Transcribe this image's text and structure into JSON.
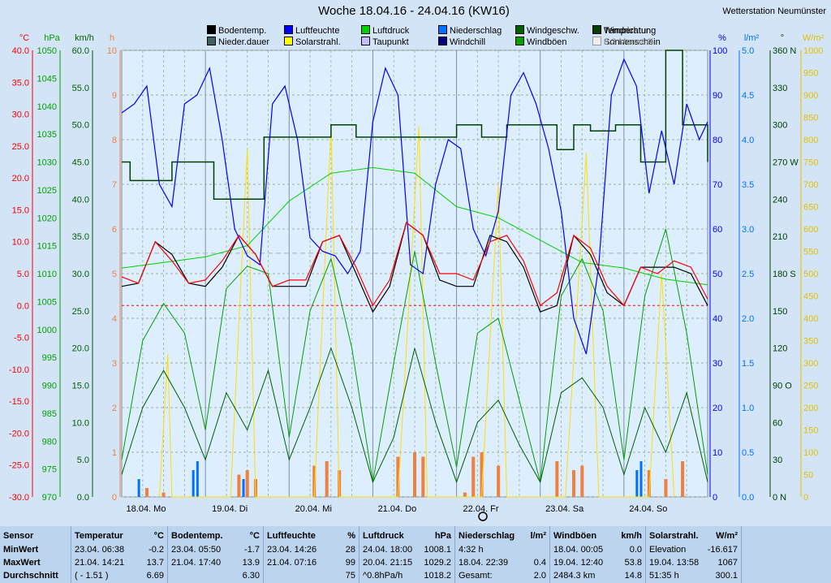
{
  "title": "Woche 18.04.16 - 24.04.16 (KW16)",
  "station": "Wetterstation Neumünster",
  "legend": [
    {
      "label": "Temperatur",
      "color": "#ff0000"
    },
    {
      "label": "Sonnenschein",
      "color": "#f08040"
    },
    {
      "label": "Bodentemp.",
      "color": "#000000"
    },
    {
      "label": "Nieder.dauer",
      "color": "#406060"
    },
    {
      "label": "Luftfeuchte",
      "color": "#0000ff"
    },
    {
      "label": "Solarstrahl.",
      "color": "#ffff00"
    },
    {
      "label": "Luftdruck",
      "color": "#00d000"
    },
    {
      "label": "Taupunkt",
      "color": "#c0c0ff"
    },
    {
      "label": "Niederschlag",
      "color": "#0070ff"
    },
    {
      "label": "Windchill",
      "color": "#000080"
    },
    {
      "label": "Windgeschw.",
      "color": "#006000"
    },
    {
      "label": "Windböen",
      "color": "#00a000"
    },
    {
      "label": "Windrichtung",
      "color": "#004000"
    },
    {
      "label": "8.2 Monat-Ø",
      "color": "#eeeeee"
    }
  ],
  "chart_data": {
    "type": "line",
    "title": "Woche 18.04.16 - 24.04.16 (KW16)",
    "x_labels": [
      "18.04. Mo",
      "19.04. Di",
      "20.04. Mi",
      "21.04. Do",
      "22.04. Fr",
      "23.04. Sa",
      "24.04. So"
    ],
    "axes": {
      "temperature_C": {
        "label": "°C",
        "ticks": [
          "40.0",
          "35.0",
          "30.0",
          "25.0",
          "20.0",
          "15.0",
          "10.0",
          "5.0",
          "0.0",
          "-5.0",
          "-10.0",
          "-15.0",
          "-20.0",
          "-25.0",
          "-30.0"
        ],
        "range": [
          -30,
          40
        ]
      },
      "pressure_hPa": {
        "label": "hPa",
        "ticks": [
          "1050",
          "1045",
          "1040",
          "1035",
          "1030",
          "1025",
          "1020",
          "1015",
          "1010",
          "1005",
          "1000",
          "995",
          "990",
          "985",
          "980",
          "975",
          "970"
        ],
        "range": [
          970,
          1050
        ]
      },
      "wind_kmh": {
        "label": "km/h",
        "ticks": [
          "60.0",
          "55.0",
          "50.0",
          "45.0",
          "40.0",
          "35.0",
          "30.0",
          "25.0",
          "20.0",
          "15.0",
          "10.0",
          "5.0",
          "0.0"
        ],
        "range": [
          0,
          60
        ]
      },
      "sunshine_h": {
        "label": "h",
        "ticks": [
          "10",
          "9",
          "8",
          "7",
          "6",
          "5",
          "4",
          "3",
          "2",
          "1",
          "0"
        ],
        "range": [
          0,
          10
        ]
      },
      "humidity_pct": {
        "label": "%",
        "ticks": [
          "100",
          "90",
          "80",
          "70",
          "60",
          "50",
          "40",
          "30",
          "20",
          "10",
          "0"
        ],
        "range": [
          0,
          100
        ]
      },
      "rain_lm2": {
        "label": "l/m²",
        "ticks": [
          "5.0",
          "4.5",
          "4.0",
          "3.5",
          "3.0",
          "2.5",
          "2.0",
          "1.5",
          "1.0",
          "0.5",
          "0.0"
        ],
        "range": [
          0,
          5
        ]
      },
      "direction_deg": {
        "label": "°",
        "ticks": [
          "360 N",
          "330",
          "300",
          "270 W",
          "240",
          "210",
          "180 S",
          "150",
          "120",
          "90 O",
          "60",
          "30",
          "0 N"
        ],
        "range": [
          0,
          360
        ]
      },
      "solar_wm2": {
        "label": "W/m²",
        "ticks": [
          "1000",
          "950",
          "900",
          "850",
          "800",
          "750",
          "700",
          "650",
          "600",
          "550",
          "500",
          "450",
          "400",
          "350",
          "300",
          "250",
          "200",
          "150",
          "100",
          "50",
          "0"
        ],
        "range": [
          0,
          1000
        ]
      }
    },
    "series": [
      {
        "name": "Temperatur",
        "unit": "°C",
        "x": [
          0,
          0.2,
          0.4,
          0.6,
          0.8,
          1.0,
          1.2,
          1.4,
          1.6,
          1.8,
          2.0,
          2.2,
          2.4,
          2.6,
          2.8,
          3.0,
          3.2,
          3.4,
          3.6,
          3.8,
          4.0,
          4.2,
          4.4,
          4.6,
          4.8,
          5.0,
          5.2,
          5.4,
          5.6,
          5.8,
          6.0,
          6.2,
          6.4,
          6.6,
          6.8,
          7.0
        ],
        "values": [
          4.5,
          3.5,
          10,
          7,
          3.5,
          4,
          7,
          11,
          8,
          3,
          4,
          4,
          10,
          11,
          6,
          0,
          4,
          13,
          11,
          5,
          5,
          4,
          10,
          11,
          7,
          0,
          2,
          11,
          9,
          3,
          0,
          6,
          5,
          7,
          6,
          1
        ]
      },
      {
        "name": "Bodentemp.",
        "unit": "°C",
        "x": [
          0,
          0.2,
          0.4,
          0.6,
          0.8,
          1.0,
          1.2,
          1.4,
          1.6,
          1.8,
          2.0,
          2.2,
          2.4,
          2.6,
          2.8,
          3.0,
          3.2,
          3.4,
          3.6,
          3.8,
          4.0,
          4.2,
          4.4,
          4.6,
          4.8,
          5.0,
          5.2,
          5.4,
          5.6,
          5.8,
          6.0,
          6.2,
          6.4,
          6.6,
          6.8,
          7.0
        ],
        "values": [
          3,
          3.5,
          10,
          8,
          3.5,
          3,
          6,
          11,
          8,
          3,
          3,
          3,
          10,
          11,
          5,
          -1,
          3,
          13,
          11,
          4,
          3,
          3,
          11,
          10,
          6,
          -1,
          0,
          11,
          8,
          2,
          0,
          6,
          6,
          6,
          5,
          0
        ]
      },
      {
        "name": "Luftfeuchte",
        "unit": "%",
        "x": [
          0,
          0.15,
          0.3,
          0.45,
          0.6,
          0.75,
          0.9,
          1.05,
          1.2,
          1.35,
          1.5,
          1.65,
          1.8,
          1.95,
          2.1,
          2.25,
          2.4,
          2.55,
          2.7,
          2.85,
          3.0,
          3.15,
          3.3,
          3.45,
          3.6,
          3.75,
          3.9,
          4.05,
          4.2,
          4.35,
          4.5,
          4.65,
          4.8,
          4.95,
          5.1,
          5.25,
          5.4,
          5.55,
          5.7,
          5.85,
          6.0,
          6.15,
          6.3,
          6.45,
          6.6,
          6.75,
          6.9,
          7.0
        ],
        "values": [
          86,
          88,
          92,
          70,
          65,
          88,
          90,
          96,
          80,
          60,
          54,
          52,
          88,
          92,
          80,
          58,
          55,
          54,
          50,
          55,
          84,
          96,
          90,
          52,
          50,
          70,
          80,
          78,
          60,
          54,
          64,
          90,
          95,
          88,
          78,
          64,
          40,
          32,
          52,
          90,
          98,
          92,
          68,
          82,
          70,
          88,
          80,
          84
        ]
      },
      {
        "name": "Luftdruck",
        "unit": "hPa",
        "x": [
          0,
          0.5,
          1.0,
          1.5,
          2.0,
          2.5,
          3.0,
          3.5,
          4.0,
          4.5,
          5.0,
          5.5,
          6.0,
          6.5,
          7.0
        ],
        "values": [
          1011,
          1012,
          1013,
          1015,
          1023,
          1028,
          1029,
          1028,
          1022,
          1020,
          1016,
          1012,
          1011,
          1009,
          1008
        ]
      },
      {
        "name": "Windgeschw.",
        "unit": "km/h",
        "x": [
          0,
          0.25,
          0.5,
          0.75,
          1.0,
          1.25,
          1.5,
          1.75,
          2.0,
          2.25,
          2.5,
          2.75,
          3.0,
          3.25,
          3.5,
          3.75,
          4.0,
          4.25,
          4.5,
          4.75,
          5.0,
          5.25,
          5.5,
          5.75,
          6.0,
          6.25,
          6.5,
          6.75,
          7.0
        ],
        "values": [
          3,
          12,
          17,
          12,
          5,
          14,
          9,
          17,
          5,
          12,
          20,
          12,
          2,
          8,
          20,
          10,
          2,
          10,
          13,
          7,
          2,
          14,
          16,
          12,
          3,
          12,
          6,
          14,
          2
        ]
      },
      {
        "name": "Windböen",
        "unit": "km/h",
        "x": [
          0,
          0.25,
          0.5,
          0.75,
          1.0,
          1.25,
          1.5,
          1.75,
          2.0,
          2.25,
          2.5,
          2.75,
          3.0,
          3.25,
          3.5,
          3.75,
          4.0,
          4.25,
          4.5,
          4.75,
          5.0,
          5.25,
          5.5,
          5.75,
          6.0,
          6.25,
          6.5,
          6.75,
          7.0
        ],
        "values": [
          5,
          21,
          26,
          22,
          9,
          28,
          31,
          30,
          8,
          25,
          32,
          20,
          2,
          18,
          33,
          18,
          4,
          22,
          24,
          13,
          2,
          27,
          32,
          25,
          5,
          27,
          36,
          22,
          3
        ]
      },
      {
        "name": "Windrichtung",
        "unit": "°",
        "x": [
          0,
          0.1,
          0.4,
          0.6,
          0.9,
          1.1,
          1.5,
          1.7,
          2.1,
          2.5,
          2.8,
          3.2,
          3.6,
          4.0,
          4.3,
          4.6,
          4.9,
          5.2,
          5.4,
          5.6,
          5.9,
          6.2,
          6.5,
          6.7,
          7.0
        ],
        "values": [
          270,
          255,
          255,
          270,
          270,
          240,
          240,
          290,
          290,
          300,
          290,
          290,
          290,
          300,
          290,
          300,
          300,
          280,
          300,
          295,
          300,
          270,
          360,
          300,
          270
        ]
      },
      {
        "name": "Solarstrahl.",
        "unit": "W/m²",
        "x": [
          0.45,
          0.55,
          0.6,
          1.3,
          1.5,
          1.6,
          2.3,
          2.5,
          2.6,
          3.3,
          3.55,
          3.65,
          4.3,
          4.5,
          4.6,
          5.3,
          5.55,
          5.7,
          6.3,
          6.45,
          6.6
        ],
        "values": [
          0,
          320,
          0,
          0,
          780,
          0,
          0,
          830,
          0,
          0,
          830,
          0,
          0,
          700,
          0,
          0,
          770,
          0,
          0,
          500,
          0
        ]
      },
      {
        "name": "Niederschlag",
        "unit": "l/m²",
        "x": [
          0.2,
          0.85,
          0.9,
          1.45,
          6.15,
          6.2
        ],
        "values": [
          0.2,
          0.3,
          0.4,
          0.2,
          0.3,
          0.4
        ]
      },
      {
        "name": "Sonnenschein",
        "unit": "h",
        "x": [
          0.3,
          0.5,
          1.4,
          1.5,
          1.6,
          2.3,
          2.45,
          2.6,
          3.3,
          3.5,
          3.6,
          4.1,
          4.2,
          4.3,
          4.5,
          5.2,
          5.4,
          5.5,
          6.3,
          6.5,
          6.7
        ],
        "values": [
          0.2,
          0.1,
          0.5,
          0.6,
          0.4,
          0.7,
          0.8,
          0.6,
          0.9,
          1.0,
          0.9,
          0.1,
          0.9,
          1.0,
          0.7,
          0.8,
          0.6,
          0.7,
          0.6,
          0.4,
          0.8
        ]
      }
    ]
  },
  "stats": {
    "columns": [
      {
        "header": "Sensor",
        "unit": "",
        "rows": [
          [
            "MinWert",
            ""
          ],
          [
            "MaxWert",
            ""
          ],
          [
            "Durchschnitt",
            ""
          ]
        ]
      },
      {
        "header": "Temperatur",
        "unit": "°C",
        "rows": [
          [
            "23.04.  06:38",
            "-0.2"
          ],
          [
            "21.04.  14:21",
            "13.7"
          ],
          [
            "( - 1.51 )",
            "6.69"
          ]
        ]
      },
      {
        "header": "Bodentemp.",
        "unit": "°C",
        "rows": [
          [
            "23.04.  05:50",
            "-1.7"
          ],
          [
            "21.04.  17:40",
            "13.9"
          ],
          [
            "",
            "6.30"
          ]
        ]
      },
      {
        "header": "Luftfeuchte",
        "unit": "%",
        "rows": [
          [
            "23.04.  14:26",
            "28"
          ],
          [
            "21.04.  07:16",
            "99"
          ],
          [
            "",
            "75"
          ]
        ]
      },
      {
        "header": "Luftdruck",
        "unit": "hPa",
        "rows": [
          [
            "24.04.  18:00",
            "1008.1"
          ],
          [
            "20.04.  21:15",
            "1029.2"
          ],
          [
            "^0.8hPa/h",
            "1018.2"
          ]
        ]
      },
      {
        "header": "Niederschlag",
        "unit": "l/m²",
        "rows": [
          [
            "4:32 h",
            ""
          ],
          [
            "18.04.  22:39",
            "0.4"
          ],
          [
            "Gesamt:",
            "2.0"
          ]
        ]
      },
      {
        "header": "Windböen",
        "unit": "km/h",
        "rows": [
          [
            "18.04.  00:05",
            "0.0"
          ],
          [
            "19.04.  12:40",
            "53.8"
          ],
          [
            "2484.3 km",
            "14.8"
          ]
        ]
      },
      {
        "header": "Solarstrahl.",
        "unit": "W/m²",
        "rows": [
          [
            "Elevation",
            "-16.617"
          ],
          [
            "19.04.  13:58",
            "1067"
          ],
          [
            "51:35 h",
            "300.1"
          ]
        ]
      }
    ]
  }
}
